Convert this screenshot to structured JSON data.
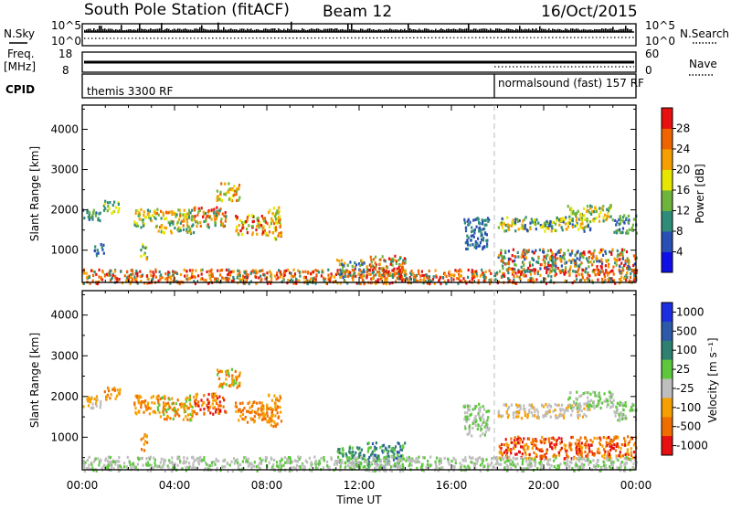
{
  "header": {
    "station": "South Pole Station (fitACF)",
    "beam": "Beam 12",
    "date": "16/Oct/2015"
  },
  "top_panels": {
    "nsky_label": "N.Sky",
    "nsky_ticks": [
      "10^5",
      "10^0"
    ],
    "nsearch_label": "N.Search",
    "nsearch_ticks": [
      "10^5",
      "10^0"
    ],
    "freq_label_1": "Freq.",
    "freq_label_2": "[MHz]",
    "freq_ticks": [
      "18",
      "8"
    ],
    "nave_label": "Nave",
    "nave_ticks": [
      "60",
      "0"
    ],
    "cpid_label": "CPID",
    "cpid_segments": [
      {
        "text": "themis 3300 RF",
        "start_hour": 0
      },
      {
        "text": "normalsound (fast) 157 RF",
        "start_hour": 18
      }
    ]
  },
  "chart_data": [
    {
      "type": "heatmap",
      "name": "power",
      "ylabel": "Slant Range [km]",
      "xlabel": "",
      "y_ticks": [
        "1000",
        "2000",
        "3000",
        "4000"
      ],
      "ylim": [
        200,
        4600
      ],
      "xlim": [
        0,
        24
      ],
      "x_ticks": [
        "00:00",
        "04:00",
        "08:00",
        "12:00",
        "16:00",
        "20:00",
        "00:00"
      ],
      "colorbar_label": "Power [dB]",
      "colorbar_ticks": [
        "4",
        "8",
        "12",
        "16",
        "20",
        "24",
        "28"
      ],
      "colorbar_colors": [
        "#1010e6",
        "#2850b4",
        "#2f8c78",
        "#6fb43c",
        "#e6e600",
        "#f5a000",
        "#f06400",
        "#e61010"
      ],
      "scatter_regions": [
        {
          "t0": 0.0,
          "t1": 0.8,
          "r0": 1750,
          "r1": 2050,
          "c": [
            1,
            2,
            3
          ]
        },
        {
          "t0": 0.9,
          "t1": 1.6,
          "r0": 1950,
          "r1": 2250,
          "c": [
            2,
            3,
            4
          ]
        },
        {
          "t0": 2.2,
          "t1": 3.2,
          "r0": 1600,
          "r1": 2050,
          "c": [
            2,
            3,
            4,
            5
          ]
        },
        {
          "t0": 3.2,
          "t1": 4.8,
          "r0": 1450,
          "r1": 2050,
          "c": [
            2,
            3,
            4,
            5,
            6
          ]
        },
        {
          "t0": 4.8,
          "t1": 6.2,
          "r0": 1600,
          "r1": 2100,
          "c": [
            2,
            3,
            5,
            6,
            7
          ]
        },
        {
          "t0": 5.8,
          "t1": 6.8,
          "r0": 2250,
          "r1": 2700,
          "c": [
            3,
            4,
            5,
            6
          ]
        },
        {
          "t0": 6.6,
          "t1": 8.0,
          "r0": 1400,
          "r1": 1900,
          "c": [
            3,
            4,
            5,
            6,
            7
          ]
        },
        {
          "t0": 8.0,
          "t1": 8.6,
          "r0": 1300,
          "r1": 2100,
          "c": [
            3,
            4,
            5,
            6
          ]
        },
        {
          "t0": 0.5,
          "t1": 0.9,
          "r0": 900,
          "r1": 1200,
          "c": [
            1,
            2
          ]
        },
        {
          "t0": 2.5,
          "t1": 2.8,
          "r0": 800,
          "r1": 1200,
          "c": [
            2,
            4,
            5
          ]
        },
        {
          "t0": 11.0,
          "t1": 12.2,
          "r0": 350,
          "r1": 800,
          "c": [
            1,
            2,
            3,
            5
          ]
        },
        {
          "t0": 12.3,
          "t1": 14.0,
          "r0": 300,
          "r1": 900,
          "c": [
            2,
            3,
            5,
            6,
            7
          ]
        },
        {
          "t0": 16.5,
          "t1": 17.6,
          "r0": 1050,
          "r1": 1850,
          "c": [
            1,
            2
          ]
        },
        {
          "t0": 18.0,
          "t1": 22.0,
          "r0": 1500,
          "r1": 1850,
          "c": [
            1,
            2,
            3,
            4,
            5
          ]
        },
        {
          "t0": 21.0,
          "t1": 23.0,
          "r0": 1750,
          "r1": 2150,
          "c": [
            2,
            3,
            4,
            5
          ]
        },
        {
          "t0": 23.0,
          "t1": 24.0,
          "r0": 1450,
          "r1": 1900,
          "c": [
            1,
            2,
            3
          ]
        },
        {
          "t0": 18.0,
          "t1": 24.0,
          "r0": 500,
          "r1": 1050,
          "c": [
            1,
            2,
            3,
            5,
            6,
            7
          ]
        },
        {
          "t0": 0.0,
          "t1": 24.0,
          "r0": 200,
          "r1": 550,
          "c": [
            2,
            5,
            6,
            7
          ]
        }
      ]
    },
    {
      "type": "heatmap",
      "name": "velocity",
      "ylabel": "Slant Range [km]",
      "xlabel": "Time UT",
      "y_ticks": [
        "1000",
        "2000",
        "3000",
        "4000"
      ],
      "ylim": [
        200,
        4600
      ],
      "xlim": [
        0,
        24
      ],
      "x_ticks": [
        "00:00",
        "04:00",
        "08:00",
        "12:00",
        "16:00",
        "20:00",
        "00:00"
      ],
      "colorbar_label": "Velocity [m s⁻¹]",
      "colorbar_ticks": [
        "1000",
        "500",
        "100",
        "25",
        "-25",
        "-100",
        "-500",
        "-1000"
      ],
      "colorbar_colors": [
        "#1c2ee0",
        "#2c5aa8",
        "#2f8070",
        "#5cc83c",
        "#bebebe",
        "#f5a000",
        "#f06e00",
        "#e61010"
      ],
      "scatter_regions": [
        {
          "t0": 0.0,
          "t1": 0.8,
          "r0": 1750,
          "r1": 2050,
          "c": [
            4,
            5
          ]
        },
        {
          "t0": 0.9,
          "t1": 1.6,
          "r0": 1950,
          "r1": 2250,
          "c": [
            5,
            6
          ]
        },
        {
          "t0": 2.2,
          "t1": 3.2,
          "r0": 1600,
          "r1": 2050,
          "c": [
            5,
            6
          ]
        },
        {
          "t0": 3.2,
          "t1": 4.8,
          "r0": 1450,
          "r1": 2050,
          "c": [
            5,
            6,
            3
          ]
        },
        {
          "t0": 4.8,
          "t1": 6.2,
          "r0": 1600,
          "r1": 2100,
          "c": [
            5,
            6,
            7
          ]
        },
        {
          "t0": 5.8,
          "t1": 6.8,
          "r0": 2250,
          "r1": 2700,
          "c": [
            5,
            6,
            3
          ]
        },
        {
          "t0": 6.6,
          "t1": 8.0,
          "r0": 1400,
          "r1": 1900,
          "c": [
            5,
            6
          ]
        },
        {
          "t0": 8.0,
          "t1": 8.6,
          "r0": 1300,
          "r1": 2100,
          "c": [
            5,
            6
          ]
        },
        {
          "t0": 2.5,
          "t1": 2.8,
          "r0": 700,
          "r1": 1100,
          "c": [
            5,
            6
          ]
        },
        {
          "t0": 11.0,
          "t1": 12.2,
          "r0": 350,
          "r1": 800,
          "c": [
            2,
            3
          ]
        },
        {
          "t0": 12.3,
          "t1": 14.0,
          "r0": 300,
          "r1": 900,
          "c": [
            2,
            3,
            1
          ]
        },
        {
          "t0": 16.5,
          "t1": 17.6,
          "r0": 1050,
          "r1": 1850,
          "c": [
            4,
            3
          ]
        },
        {
          "t0": 18.0,
          "t1": 22.0,
          "r0": 1500,
          "r1": 1850,
          "c": [
            4,
            4,
            5
          ]
        },
        {
          "t0": 21.0,
          "t1": 23.0,
          "r0": 1750,
          "r1": 2150,
          "c": [
            4,
            3
          ]
        },
        {
          "t0": 23.0,
          "t1": 24.0,
          "r0": 1450,
          "r1": 1900,
          "c": [
            4,
            3
          ]
        },
        {
          "t0": 18.0,
          "t1": 24.0,
          "r0": 500,
          "r1": 1050,
          "c": [
            5,
            6,
            7
          ]
        },
        {
          "t0": 0.0,
          "t1": 24.0,
          "r0": 200,
          "r1": 550,
          "c": [
            4,
            4,
            3
          ]
        }
      ]
    }
  ]
}
